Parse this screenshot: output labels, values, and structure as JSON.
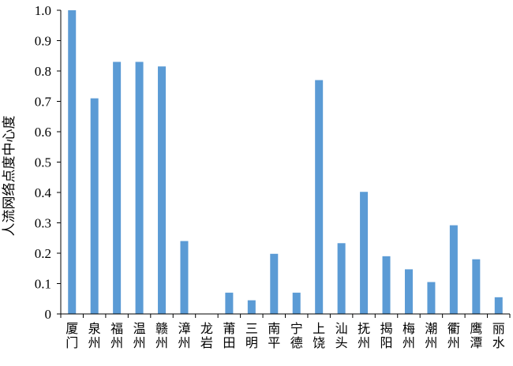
{
  "chart_data": {
    "type": "bar",
    "title": "",
    "xlabel": "",
    "ylabel": "人流网络点度中心度",
    "ylim": [
      0,
      1.0
    ],
    "yticks": [
      "0",
      "0.1",
      "0.2",
      "0.3",
      "0.4",
      "0.5",
      "0.6",
      "0.7",
      "0.8",
      "0.9",
      "1.0"
    ],
    "grid": false,
    "legend": "none",
    "bar_color": "#5b9bd5",
    "categories": [
      "厦门",
      "泉州",
      "福州",
      "温州",
      "赣州",
      "漳州",
      "龙岩",
      "莆田",
      "三明",
      "南平",
      "宁德",
      "上饶",
      "汕头",
      "抚州",
      "揭阳",
      "梅州",
      "潮州",
      "衢州",
      "鹰潭",
      "丽水"
    ],
    "values": [
      1.0,
      0.71,
      0.83,
      0.83,
      0.815,
      0.24,
      0.0,
      0.07,
      0.045,
      0.198,
      0.07,
      0.77,
      0.233,
      0.402,
      0.19,
      0.147,
      0.105,
      0.292,
      0.18,
      0.055
    ]
  }
}
